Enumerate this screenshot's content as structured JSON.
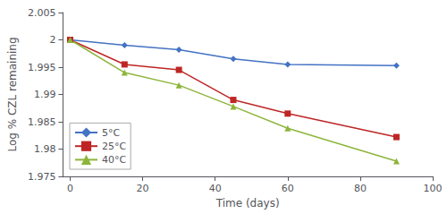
{
  "chart_data": {
    "type": "line",
    "xlabel": "Time (days)",
    "ylabel": "Log % CZL remaining",
    "x": [
      0,
      15,
      30,
      45,
      60,
      90
    ],
    "series": [
      {
        "name": "5°C",
        "color": "#4472C4",
        "marker": "diamond",
        "values": [
          2.0,
          1.999,
          1.9982,
          1.9965,
          1.9955,
          1.9953
        ]
      },
      {
        "name": "25°C",
        "color": "#BE2625",
        "marker": "square",
        "values": [
          2.0,
          1.9955,
          1.9945,
          1.989,
          1.9865,
          1.9822
        ]
      },
      {
        "name": "40°C",
        "color": "#8DB53B",
        "marker": "triangle",
        "values": [
          2.0,
          1.994,
          1.9917,
          1.9878,
          1.9838,
          1.9778
        ]
      }
    ],
    "xlim": [
      -2,
      100
    ],
    "xticks": [
      0,
      20,
      40,
      60,
      80,
      100
    ],
    "ylim": [
      1.975,
      2.005
    ],
    "yticks": [
      1.975,
      1.98,
      1.985,
      1.99,
      1.995,
      2.0,
      2.005
    ],
    "grid": false,
    "legend": "lower left"
  }
}
